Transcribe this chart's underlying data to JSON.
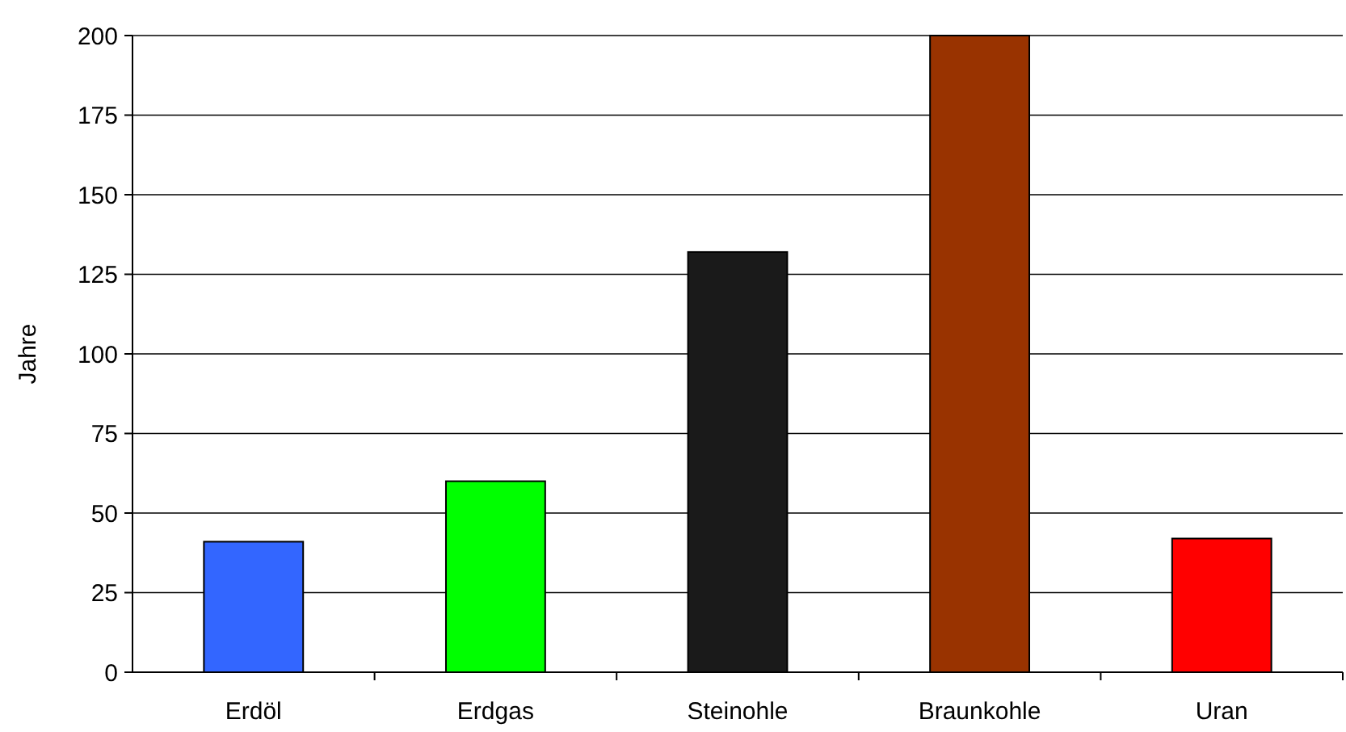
{
  "chart_data": {
    "type": "bar",
    "ylabel": "Jahre",
    "categories": [
      "Erdöl",
      "Erdgas",
      "Steinohle",
      "Braunkohle",
      "Uran"
    ],
    "values": [
      41,
      60,
      132,
      200,
      42
    ],
    "colors": [
      "#3366ff",
      "#00ff00",
      "#1a1a1a",
      "#993300",
      "#ff0000"
    ],
    "ylim": [
      0,
      200
    ],
    "yticks": [
      0,
      25,
      50,
      75,
      100,
      125,
      150,
      175,
      200
    ],
    "grid": "y"
  }
}
